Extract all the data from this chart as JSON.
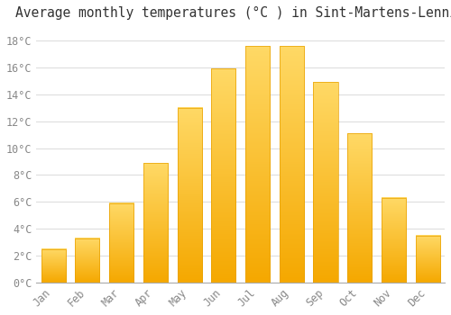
{
  "title": "Average monthly temperatures (°C ) in Sint-Martens-Lennik",
  "months": [
    "Jan",
    "Feb",
    "Mar",
    "Apr",
    "May",
    "Jun",
    "Jul",
    "Aug",
    "Sep",
    "Oct",
    "Nov",
    "Dec"
  ],
  "temperatures": [
    2.5,
    3.3,
    5.9,
    8.9,
    13.0,
    15.9,
    17.6,
    17.6,
    14.9,
    11.1,
    6.3,
    3.5
  ],
  "bar_color_bottom": "#F5A800",
  "bar_color_top": "#FFD966",
  "ylim": [
    0,
    19
  ],
  "yticks": [
    0,
    2,
    4,
    6,
    8,
    10,
    12,
    14,
    16,
    18
  ],
  "ytick_labels": [
    "0°C",
    "2°C",
    "4°C",
    "6°C",
    "8°C",
    "10°C",
    "12°C",
    "14°C",
    "16°C",
    "18°C"
  ],
  "background_color": "#FFFFFF",
  "grid_color": "#DDDDDD",
  "title_fontsize": 10.5,
  "tick_fontsize": 8.5,
  "font_family": "monospace",
  "bar_width": 0.72
}
